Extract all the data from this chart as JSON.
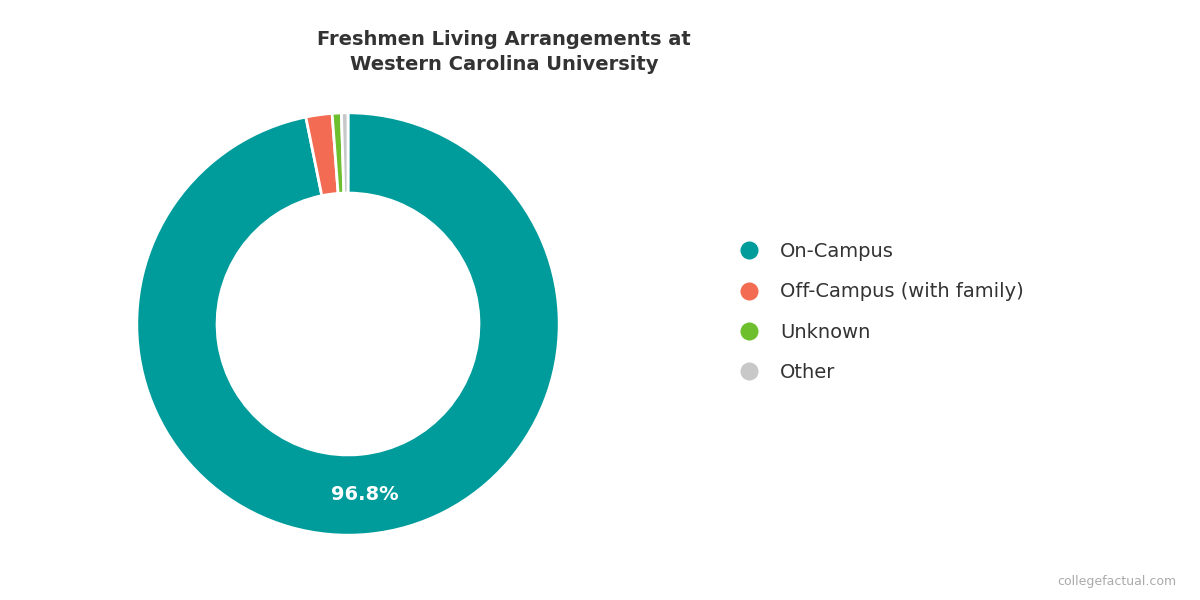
{
  "title": "Freshmen Living Arrangements at\nWestern Carolina University",
  "labels": [
    "On-Campus",
    "Off-Campus (with family)",
    "Unknown",
    "Other"
  ],
  "values": [
    96.8,
    2.0,
    0.7,
    0.5
  ],
  "colors": [
    "#009B9B",
    "#F26B52",
    "#6DBF2E",
    "#C8C8C8"
  ],
  "wedge_label": "96.8%",
  "wedge_label_color": "white",
  "background_color": "#ffffff",
  "title_fontsize": 14,
  "title_color": "#333333",
  "legend_fontsize": 14,
  "annotation_fontsize": 14,
  "donut_width": 0.38,
  "watermark": "collegefactual.com"
}
